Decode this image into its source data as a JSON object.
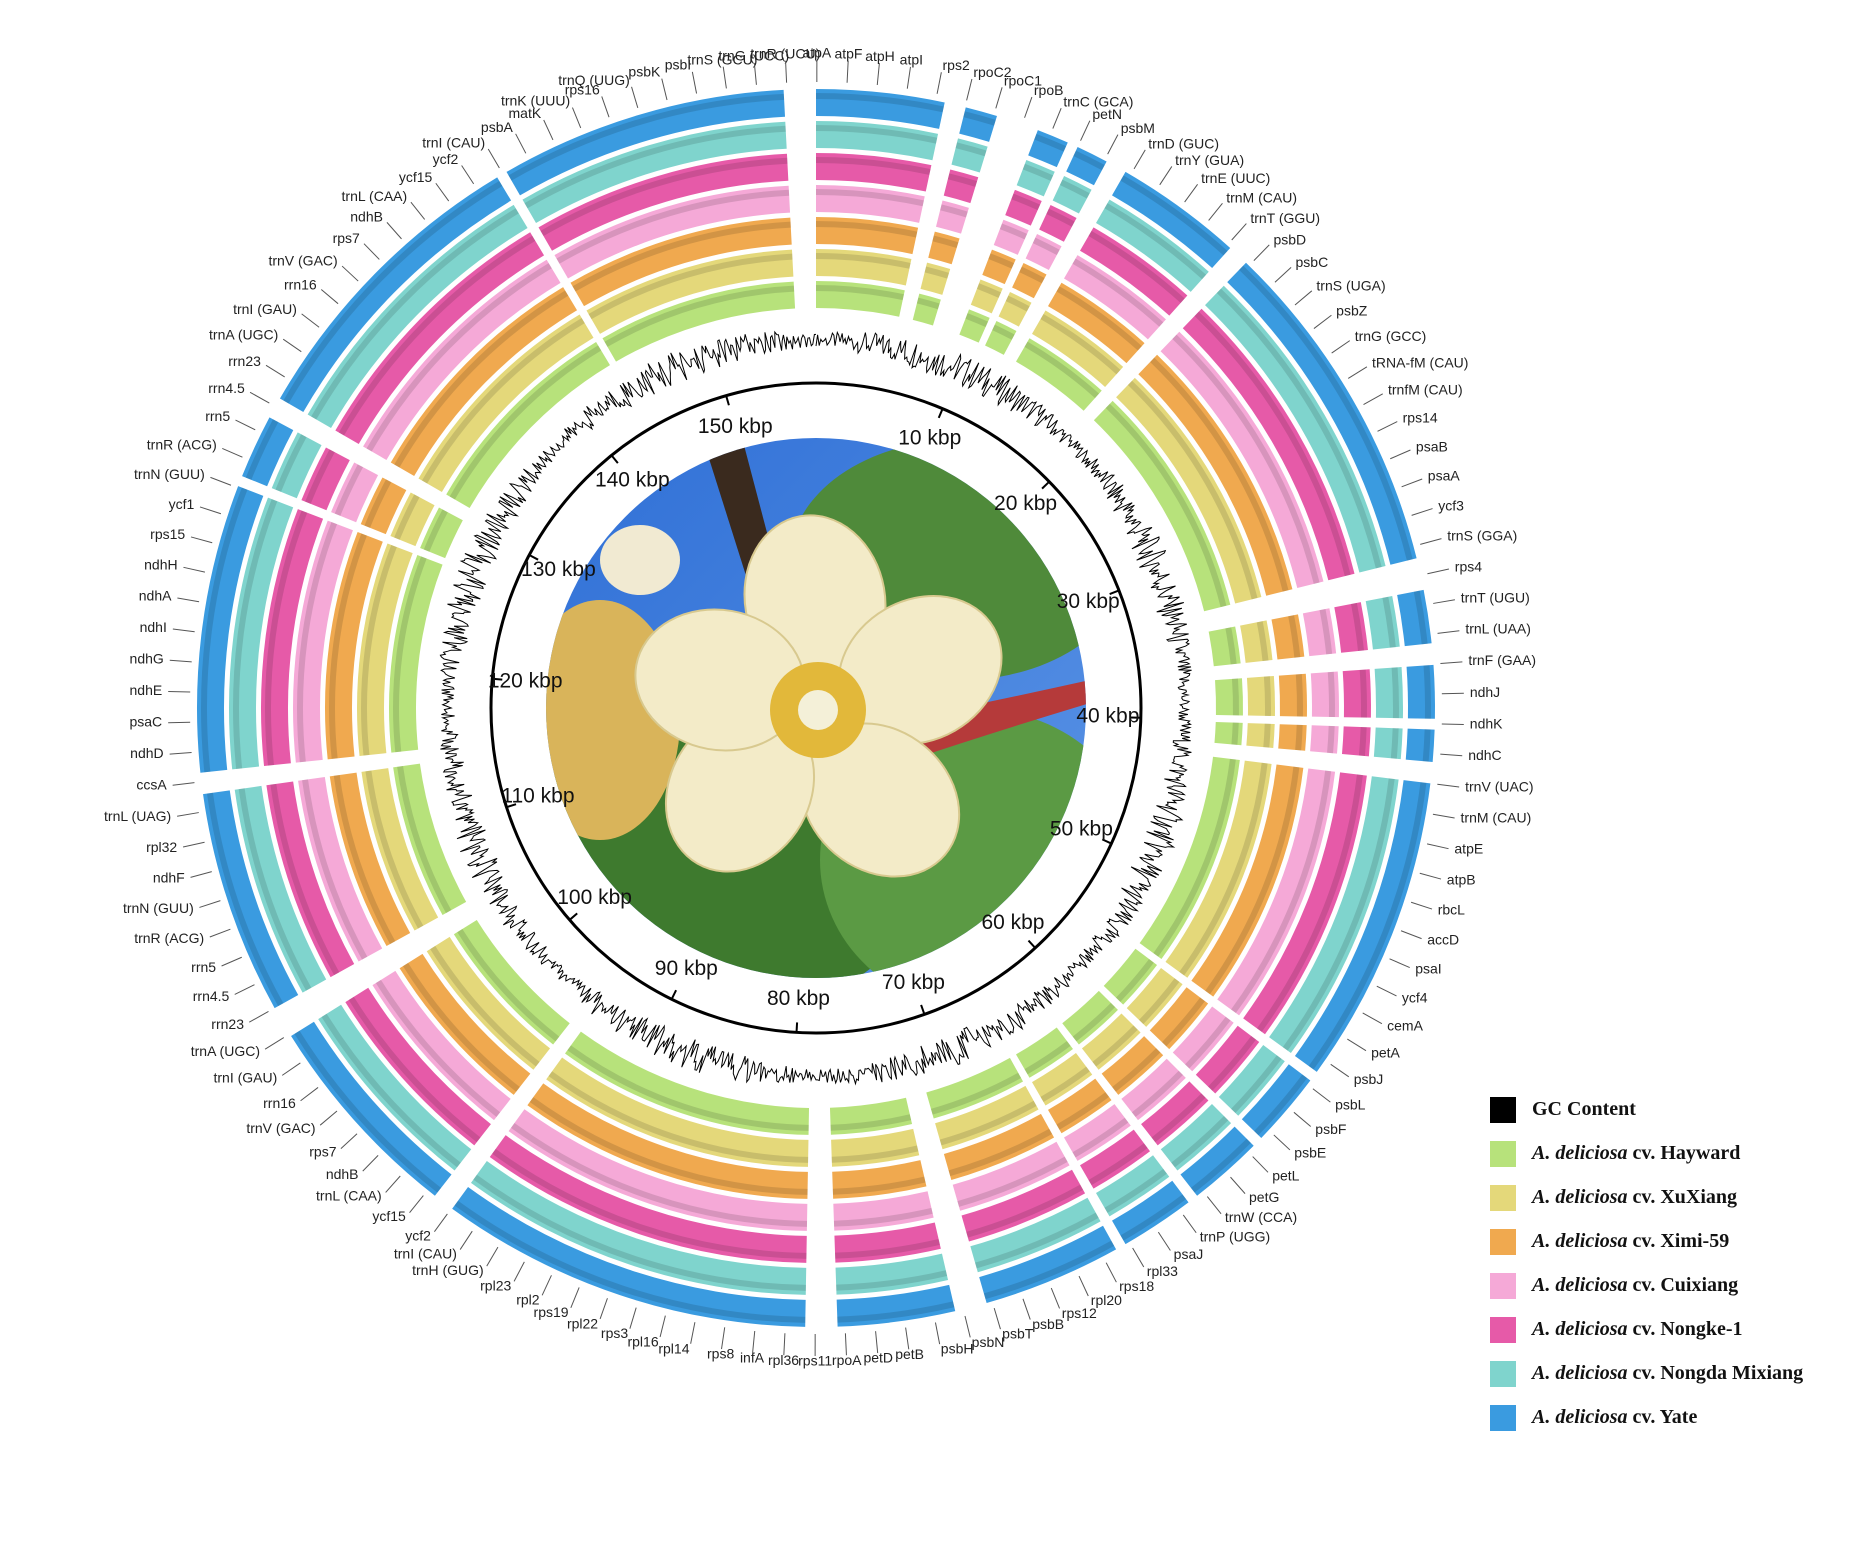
{
  "axis": {
    "lim": [
      0,
      157
    ],
    "ticks": [
      {
        "value": 10,
        "label": "10 kbp"
      },
      {
        "value": 20,
        "label": "20 kbp"
      },
      {
        "value": 30,
        "label": "30 kbp"
      },
      {
        "value": 40,
        "label": "40 kbp"
      },
      {
        "value": 50,
        "label": "50 kbp"
      },
      {
        "value": 60,
        "label": "60 kbp"
      },
      {
        "value": 70,
        "label": "70 kbp"
      },
      {
        "value": 80,
        "label": "80 kbp"
      },
      {
        "value": 90,
        "label": "90 kbp"
      },
      {
        "value": 100,
        "label": "100 kbp"
      },
      {
        "value": 110,
        "label": "110 kbp"
      },
      {
        "value": 120,
        "label": "120 kbp"
      },
      {
        "value": 130,
        "label": "130 kbp"
      },
      {
        "value": 140,
        "label": "140 kbp"
      },
      {
        "value": 150,
        "label": "150 kbp"
      }
    ]
  },
  "genes": [
    "psbA",
    "matK",
    "trnK (UUU)",
    "rps16",
    "trnQ (UUG)",
    "psbK",
    "psbI",
    "trnS (GCU)",
    "trnG (UCC)",
    "trnR (UCU)",
    "atpA",
    "atpF",
    "atpH",
    "atpI",
    "rps2",
    "rpoC2",
    "rpoC1",
    "rpoB",
    "trnC (GCA)",
    "petN",
    "psbM",
    "trnD (GUC)",
    "trnY (GUA)",
    "trnE (UUC)",
    "trnM (CAU)",
    "trnT (GGU)",
    "psbD",
    "psbC",
    "trnS (UGA)",
    "psbZ",
    "trnG (GCC)",
    "tRNA-fM (CAU)",
    "trnfM (CAU)",
    "rps14",
    "psaB",
    "psaA",
    "ycf3",
    "trnS (GGA)",
    "rps4",
    "trnT (UGU)",
    "trnL (UAA)",
    "trnF (GAA)",
    "ndhJ",
    "ndhK",
    "ndhC",
    "trnV (UAC)",
    "trnM (CAU)",
    "atpE",
    "atpB",
    "rbcL",
    "accD",
    "psaI",
    "ycf4",
    "cemA",
    "petA",
    "psbJ",
    "psbL",
    "psbF",
    "psbE",
    "petL",
    "petG",
    "trnW (CCA)",
    "trnP (UGG)",
    "psaJ",
    "rpl33",
    "rps18",
    "rpl20",
    "rps12",
    "psbB",
    "psbT",
    "psbN",
    "psbH",
    "petB",
    "petD",
    "rpoA",
    "rps11",
    "rpl36",
    "infA",
    "rps8",
    "rpl14",
    "rpl16",
    "rps3",
    "rpl22",
    "rps19",
    "rpl2",
    "rpl23",
    "trnH (GUG)",
    "trnI (CAU)",
    "ycf2",
    "ycf15",
    "trnL (CAA)",
    "ndhB",
    "rps7",
    "trnV (GAC)",
    "rrn16",
    "trnI (GAU)",
    "trnA (UGC)",
    "rrn23",
    "rrn4.5",
    "rrn5",
    "trnR (ACG)",
    "trnN (GUU)",
    "ndhF",
    "rpl32",
    "trnL (UAG)",
    "ccsA",
    "ndhD",
    "psaC",
    "ndhE",
    "ndhG",
    "ndhI",
    "ndhA",
    "ndhH",
    "rps15",
    "ycf1",
    "trnN (GUU)",
    "trnR (ACG)",
    "rrn5",
    "rrn4.5",
    "rrn23",
    "trnA (UGC)",
    "trnI (GAU)",
    "rrn16",
    "trnV (GAC)",
    "rps7",
    "ndhB",
    "trnL (CAA)",
    "ycf15",
    "ycf2",
    "trnI (CAU)"
  ],
  "legend": [
    {
      "italic": "",
      "rest": "GC Content",
      "color": "#000000"
    },
    {
      "italic": "A. deliciosa",
      "rest": " cv. Hayward",
      "color": "#b7e27b"
    },
    {
      "italic": "A. deliciosa",
      "rest": " cv. XuXiang",
      "color": "#e4d87a"
    },
    {
      "italic": "A. deliciosa",
      "rest": " cv. Ximi-59",
      "color": "#f0a94f"
    },
    {
      "italic": "A. deliciosa",
      "rest": " cv. Cuixiang",
      "color": "#f5a9d7"
    },
    {
      "italic": "A. deliciosa",
      "rest": " cv. Nongke-1",
      "color": "#e65aa8"
    },
    {
      "italic": "A. deliciosa",
      "rest": " cv. Nongda Mixiang",
      "color": "#7fd4cd"
    },
    {
      "italic": "A. deliciosa",
      "rest": " cv. Yate",
      "color": "#3a9be0"
    }
  ]
}
